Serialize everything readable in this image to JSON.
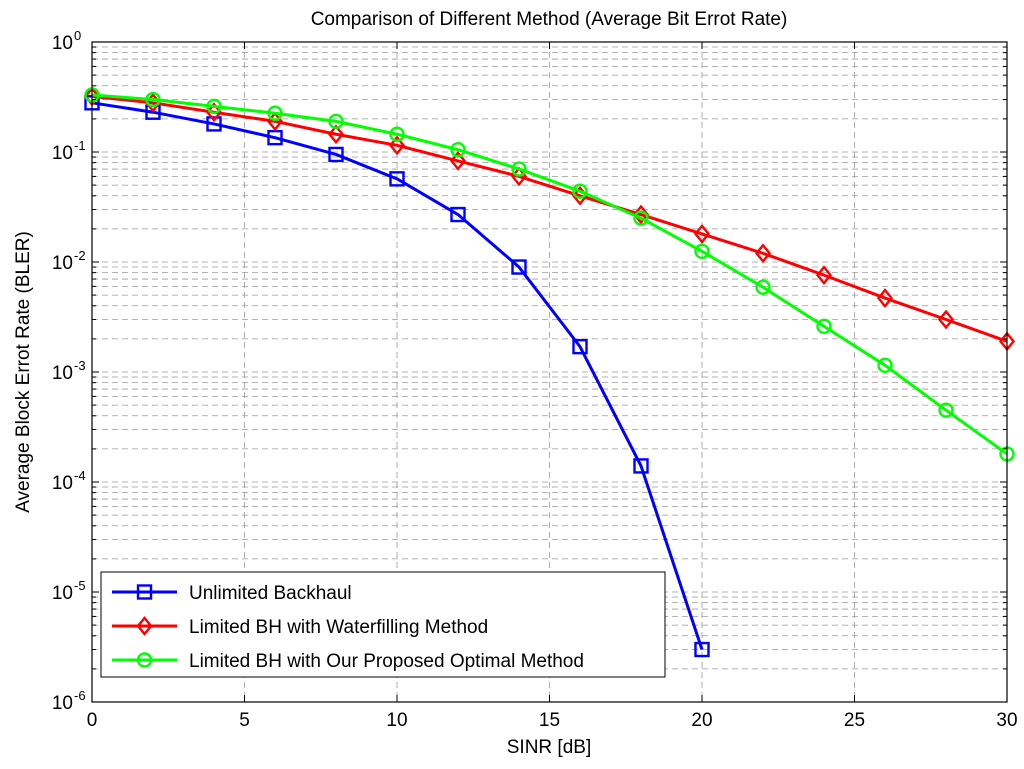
{
  "chart_data": {
    "type": "line",
    "title": "Comparison of Different Method (Average Bit Errot Rate)",
    "xlabel": "SINR [dB]",
    "ylabel": "Average Block Errot Rate (BLER)",
    "xlim": [
      0,
      30
    ],
    "ylim": [
      1e-06,
      1
    ],
    "yscale": "log",
    "grid": true,
    "legend_position": "bottom-left",
    "xticks": [
      0,
      5,
      10,
      15,
      20,
      25,
      30
    ],
    "ytick_exponents": [
      0,
      -1,
      -2,
      -3,
      -4,
      -5,
      -6
    ],
    "series": [
      {
        "name": "Unlimited Backhaul",
        "color": "#0000ff",
        "marker": "square",
        "x": [
          0,
          2,
          4,
          6,
          8,
          10,
          12,
          14,
          16,
          18,
          20
        ],
        "y": [
          0.28,
          0.23,
          0.18,
          0.135,
          0.095,
          0.057,
          0.027,
          0.009,
          0.0017,
          0.00014,
          3e-06
        ]
      },
      {
        "name": "Limited BH with Waterfilling Method",
        "color": "#ff0000",
        "marker": "diamond",
        "x": [
          0,
          2,
          4,
          6,
          8,
          10,
          12,
          14,
          16,
          18,
          20,
          22,
          24,
          26,
          28,
          30
        ],
        "y": [
          0.32,
          0.28,
          0.23,
          0.19,
          0.145,
          0.115,
          0.083,
          0.06,
          0.04,
          0.027,
          0.018,
          0.012,
          0.0076,
          0.0047,
          0.003,
          0.0019
        ]
      },
      {
        "name": "Limited BH with Our Proposed Optimal Method",
        "color": "#00ff00",
        "marker": "circle",
        "x": [
          0,
          2,
          4,
          6,
          8,
          10,
          12,
          14,
          16,
          18,
          20,
          22,
          24,
          26,
          28,
          30
        ],
        "y": [
          0.33,
          0.3,
          0.26,
          0.225,
          0.19,
          0.145,
          0.105,
          0.07,
          0.044,
          0.025,
          0.0125,
          0.0059,
          0.0026,
          0.00115,
          0.00045,
          0.00018
        ]
      }
    ]
  }
}
